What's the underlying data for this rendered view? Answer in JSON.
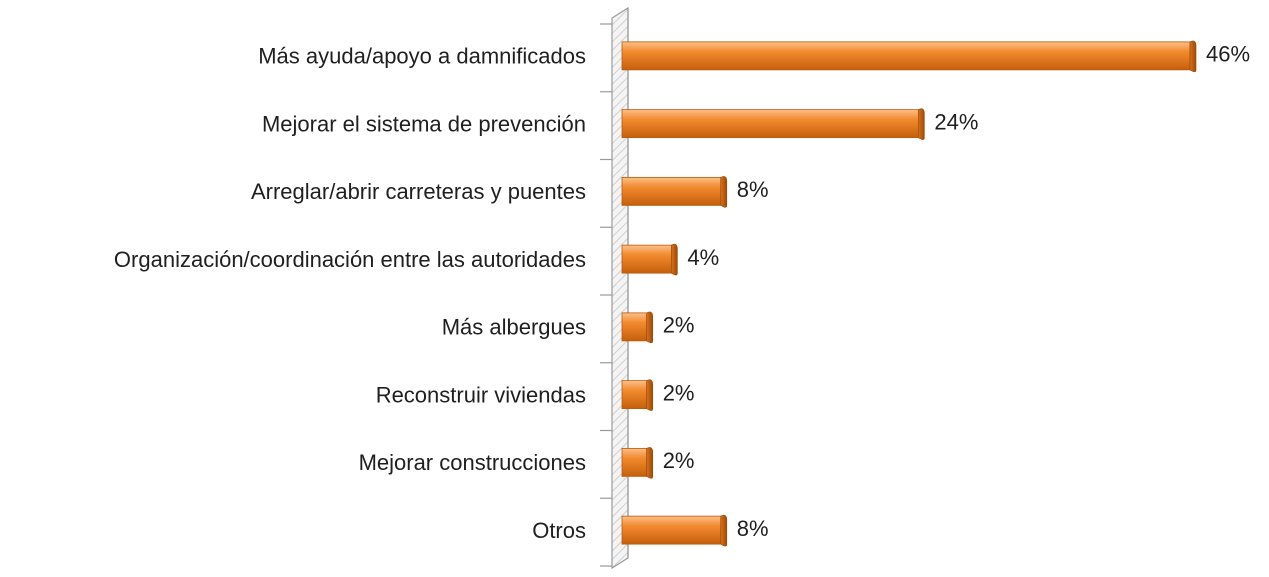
{
  "chart_data": {
    "type": "bar",
    "orientation": "horizontal",
    "categories": [
      "Más ayuda/apoyo a damnificados",
      "Mejorar el sistema de prevención",
      "Arreglar/abrir carreteras y puentes",
      "Organización/coordinación entre las autoridades",
      "Más albergues",
      "Reconstruir viviendas",
      "Mejorar construcciones",
      "Otros"
    ],
    "values": [
      46,
      24,
      8,
      4,
      2,
      2,
      2,
      8
    ],
    "value_labels": [
      "46%",
      "24%",
      "8%",
      "4%",
      "2%",
      "2%",
      "2%",
      "8%"
    ],
    "color": "#f28a2e"
  }
}
